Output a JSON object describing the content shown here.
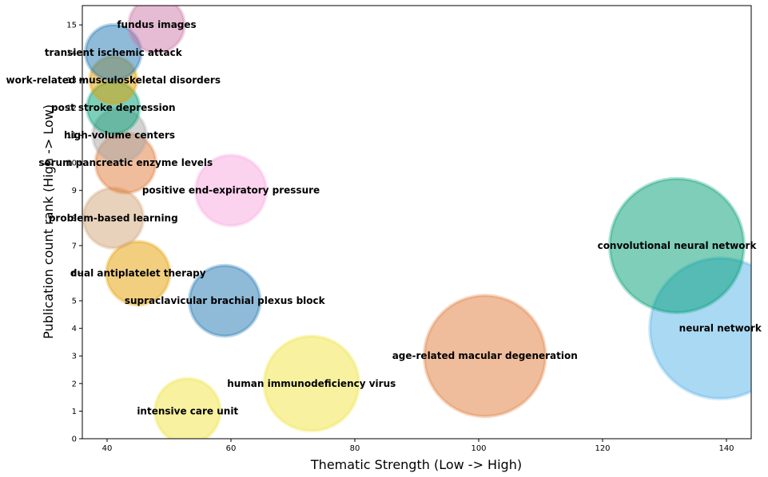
{
  "chart_data": {
    "type": "scatter",
    "title": "",
    "xlabel": "Thematic Strength (Low -> High)",
    "ylabel": "Publication count rank (High -> Low)",
    "xlim": [
      36,
      144
    ],
    "ylim": [
      0,
      15.7
    ],
    "xticks": [
      40,
      60,
      80,
      100,
      120,
      140
    ],
    "yticks": [
      0,
      1,
      2,
      3,
      4,
      5,
      6,
      7,
      8,
      9,
      10,
      11,
      12,
      13,
      14,
      15
    ],
    "grid": false,
    "points": [
      {
        "label": "intensive care unit",
        "x": 53,
        "y": 1,
        "size": 1.0,
        "color": "#f0e442"
      },
      {
        "label": "human immunodeficiency virus",
        "x": 73,
        "y": 2,
        "size": 1.45,
        "color": "#f0e442"
      },
      {
        "label": "age-related macular degeneration",
        "x": 101,
        "y": 3,
        "size": 1.85,
        "color": "#e07b39"
      },
      {
        "label": "neural network",
        "x": 139,
        "y": 4,
        "size": 2.15,
        "color": "#56b4e9"
      },
      {
        "label": "supraclavicular brachial plexus block",
        "x": 59,
        "y": 5,
        "size": 1.08,
        "color": "#1f77b4"
      },
      {
        "label": "dual antiplatelet therapy",
        "x": 45,
        "y": 6,
        "size": 0.97,
        "color": "#e69f00"
      },
      {
        "label": "convolutional neural network",
        "x": 132,
        "y": 7,
        "size": 2.05,
        "color": "#009e73"
      },
      {
        "label": "problem-based learning",
        "x": 41,
        "y": 8,
        "size": 0.92,
        "color": "#d2a679"
      },
      {
        "label": "positive end-expiratory pressure",
        "x": 60,
        "y": 9,
        "size": 1.08,
        "color": "#f9a8e0"
      },
      {
        "label": "serum pancreatic enzyme levels",
        "x": 43,
        "y": 10,
        "size": 0.92,
        "color": "#e07b39"
      },
      {
        "label": "high-volume centers",
        "x": 42,
        "y": 11,
        "size": 0.82,
        "color": "#a8a8a8"
      },
      {
        "label": "post stroke depression",
        "x": 41,
        "y": 12,
        "size": 0.8,
        "color": "#009e73"
      },
      {
        "label": "work-related musculoskeletal disorders",
        "x": 41,
        "y": 13,
        "size": 0.72,
        "color": "#e69f00"
      },
      {
        "label": "transient ischemic attack",
        "x": 41,
        "y": 14,
        "size": 0.85,
        "color": "#1f77b4"
      },
      {
        "label": "fundus images",
        "x": 48,
        "y": 15,
        "size": 0.85,
        "color": "#cc79a7"
      }
    ]
  }
}
